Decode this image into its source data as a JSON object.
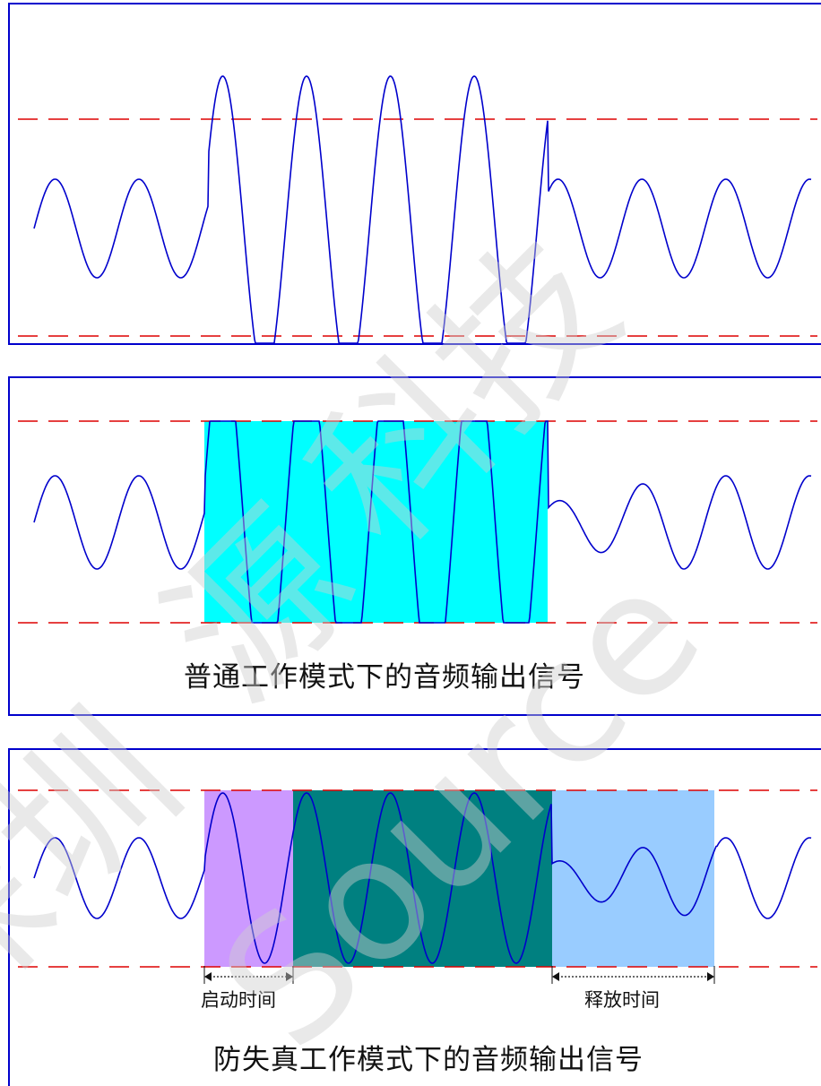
{
  "panels": {
    "normal": {
      "caption": "普通工作模式下的音频输出信号"
    },
    "anti_distortion": {
      "caption": "防失真工作模式下的音频输出信号",
      "attack_label": "启动时间",
      "release_label": "释放时间"
    }
  },
  "watermark_text": [
    "深圳",
    "源",
    "科技",
    "Source"
  ],
  "colors": {
    "frame": "#0000cc",
    "waveform": "#0000cc",
    "threshold": "#dd0000",
    "clip_region": "#00ffff",
    "attack_region": "#cc99ff",
    "hold_region": "#008080",
    "release_region": "#99ccff",
    "watermark": "#d9d9d9"
  }
}
